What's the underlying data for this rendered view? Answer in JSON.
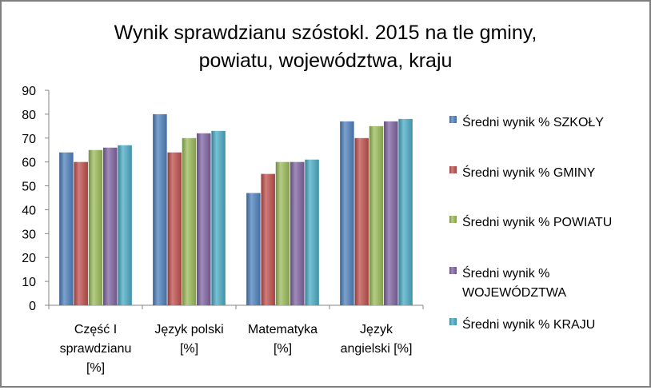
{
  "chart_data": {
    "type": "bar",
    "title_lines": [
      "Wynik sprawdzianu szóstokl. 2015 na tle gminy,",
      "powiatu, województwa, kraju"
    ],
    "categories": [
      [
        "Część I",
        "sprawdzianu",
        "[%]"
      ],
      [
        "Język polski",
        "[%]"
      ],
      [
        "Matematyka",
        "[%]"
      ],
      [
        "Język",
        "angielski [%]"
      ]
    ],
    "series": [
      {
        "name_lines": [
          "Średni wynik % SZKOŁY"
        ],
        "color": "#4f81bd",
        "values": [
          64,
          80,
          47,
          77
        ]
      },
      {
        "name_lines": [
          "Średni wynik % GMINY"
        ],
        "color": "#c0504d",
        "values": [
          60,
          64,
          55,
          70
        ]
      },
      {
        "name_lines": [
          "Średni wynik % POWIATU"
        ],
        "color": "#9bbb59",
        "values": [
          65,
          70,
          60,
          75
        ]
      },
      {
        "name_lines": [
          "Średni wynik %",
          "WOJEWÓDZTWA"
        ],
        "color": "#8064a2",
        "values": [
          66,
          72,
          60,
          77
        ]
      },
      {
        "name_lines": [
          "Średni wynik % KRAJU"
        ],
        "color": "#4bacc6",
        "values": [
          67,
          73,
          61,
          78
        ]
      }
    ],
    "ylim": [
      0,
      90
    ],
    "yticks": [
      0,
      10,
      20,
      30,
      40,
      50,
      60,
      70,
      80,
      90
    ],
    "grid": false,
    "legend": "right"
  }
}
